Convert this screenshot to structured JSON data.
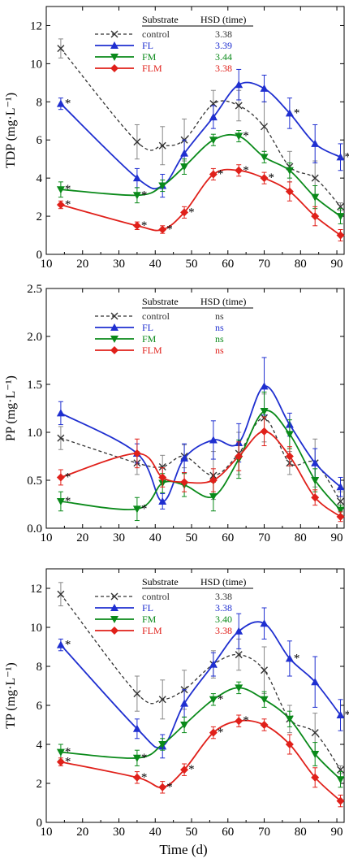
{
  "figure": {
    "xlabel": "Time (d)"
  },
  "legend": {
    "header_substrate": "Substrate",
    "header_hsd": "HSD (time)"
  },
  "colors": {
    "control": "#333333",
    "FL": "#1f2fd0",
    "FM": "#0a8a1a",
    "FLM": "#e0201a"
  },
  "chart_data": [
    {
      "type": "line",
      "ylabel": "TDP (mg·L⁻¹)",
      "ylim": [
        0,
        13
      ],
      "yticks": [
        0,
        2,
        4,
        6,
        8,
        10,
        12
      ],
      "xlim": [
        10,
        92
      ],
      "xticks": [
        10,
        20,
        30,
        40,
        50,
        60,
        70,
        80,
        90
      ],
      "legend_hsd": [
        "3.38",
        "3.39",
        "3.44",
        "3.38"
      ],
      "series": [
        {
          "name": "control",
          "x": [
            14,
            35,
            42,
            48,
            56,
            63,
            70,
            77,
            84,
            91
          ],
          "values": [
            10.8,
            5.9,
            5.7,
            6.0,
            7.9,
            7.8,
            6.7,
            4.6,
            4.0,
            2.5
          ],
          "errors": [
            0.5,
            0.9,
            1.0,
            1.1,
            0.7,
            0.8,
            1.3,
            0.8,
            0.9,
            0.2
          ]
        },
        {
          "name": "FL",
          "x": [
            14,
            35,
            42,
            48,
            56,
            63,
            70,
            77,
            84,
            91
          ],
          "values": [
            7.9,
            4.0,
            3.6,
            5.3,
            7.2,
            8.9,
            8.7,
            7.4,
            5.8,
            5.1
          ],
          "errors": [
            0.3,
            0.5,
            0.6,
            0.7,
            0.6,
            0.8,
            0.7,
            0.8,
            1.0,
            0.7
          ],
          "sig": [
            true,
            false,
            false,
            false,
            false,
            false,
            false,
            true,
            false,
            true
          ]
        },
        {
          "name": "FM",
          "x": [
            14,
            35,
            42,
            48,
            56,
            63,
            70,
            77,
            84,
            91
          ],
          "values": [
            3.4,
            3.1,
            3.6,
            4.6,
            6.0,
            6.2,
            5.1,
            4.4,
            3.0,
            2.0
          ],
          "errors": [
            0.4,
            0.4,
            0.3,
            0.4,
            0.3,
            0.3,
            0.3,
            0.4,
            0.6,
            0.4
          ],
          "sig": [
            true,
            true,
            false,
            false,
            false,
            true,
            false,
            false,
            false,
            false
          ]
        },
        {
          "name": "FLM",
          "x": [
            14,
            35,
            42,
            48,
            56,
            63,
            70,
            77,
            84,
            91
          ],
          "values": [
            2.6,
            1.5,
            1.3,
            2.2,
            4.2,
            4.4,
            4.0,
            3.3,
            2.0,
            1.0
          ],
          "errors": [
            0.2,
            0.2,
            0.2,
            0.3,
            0.3,
            0.3,
            0.3,
            0.5,
            0.5,
            0.3
          ],
          "sig": [
            true,
            true,
            true,
            true,
            true,
            true,
            true,
            false,
            false,
            false
          ]
        }
      ]
    },
    {
      "type": "line",
      "ylabel": "PP (mg·L⁻¹)",
      "ylim": [
        0,
        2.5
      ],
      "yticks": [
        0.0,
        0.5,
        1.0,
        1.5,
        2.0,
        2.5
      ],
      "xlim": [
        10,
        92
      ],
      "xticks": [
        10,
        20,
        30,
        40,
        50,
        60,
        70,
        80,
        90
      ],
      "legend_hsd": [
        "ns",
        "ns",
        "ns",
        "ns"
      ],
      "series": [
        {
          "name": "control",
          "x": [
            14,
            35,
            42,
            48,
            56,
            63,
            70,
            77,
            84,
            91
          ],
          "values": [
            0.94,
            0.68,
            0.64,
            0.75,
            0.55,
            0.78,
            1.15,
            0.68,
            0.68,
            0.28
          ],
          "errors": [
            0.12,
            0.12,
            0.12,
            0.12,
            0.25,
            0.22,
            0.25,
            0.12,
            0.25,
            0.1
          ]
        },
        {
          "name": "FL",
          "x": [
            14,
            35,
            42,
            48,
            56,
            63,
            70,
            77,
            84,
            91
          ],
          "values": [
            1.2,
            0.78,
            0.28,
            0.73,
            0.92,
            0.89,
            1.48,
            1.08,
            0.68,
            0.43
          ],
          "errors": [
            0.12,
            0.1,
            0.08,
            0.15,
            0.2,
            0.2,
            0.3,
            0.12,
            0.15,
            0.1
          ]
        },
        {
          "name": "FM",
          "x": [
            14,
            35,
            42,
            48,
            56,
            63,
            70,
            77,
            84,
            91
          ],
          "values": [
            0.28,
            0.2,
            0.47,
            0.45,
            0.33,
            0.72,
            1.22,
            0.98,
            0.5,
            0.19
          ],
          "errors": [
            0.1,
            0.12,
            0.1,
            0.12,
            0.15,
            0.2,
            0.2,
            0.15,
            0.12,
            0.05
          ],
          "sig": [
            true,
            true,
            false,
            false,
            false,
            false,
            false,
            false,
            false,
            false
          ]
        },
        {
          "name": "FLM",
          "x": [
            14,
            35,
            42,
            48,
            56,
            63,
            70,
            77,
            84,
            91
          ],
          "values": [
            0.53,
            0.78,
            0.53,
            0.48,
            0.5,
            0.75,
            1.01,
            0.75,
            0.32,
            0.12
          ],
          "errors": [
            0.08,
            0.15,
            0.1,
            0.1,
            0.12,
            0.15,
            0.15,
            0.1,
            0.08,
            0.05
          ],
          "sig": [
            true,
            false,
            false,
            false,
            false,
            false,
            false,
            false,
            false,
            false
          ]
        }
      ]
    },
    {
      "type": "line",
      "ylabel": "TP (mg·L⁻¹)",
      "ylim": [
        0,
        13
      ],
      "yticks": [
        0,
        2,
        4,
        6,
        8,
        10,
        12
      ],
      "xlim": [
        10,
        92
      ],
      "xticks": [
        10,
        20,
        30,
        40,
        50,
        60,
        70,
        80,
        90
      ],
      "legend_hsd": [
        "3.38",
        "3.38",
        "3.40",
        "3.38"
      ],
      "series": [
        {
          "name": "control",
          "x": [
            14,
            35,
            42,
            48,
            56,
            63,
            70,
            77,
            84,
            91
          ],
          "values": [
            11.7,
            6.6,
            6.3,
            6.8,
            8.1,
            8.6,
            7.8,
            5.3,
            4.6,
            2.7
          ],
          "errors": [
            0.6,
            0.9,
            1.0,
            1.0,
            0.7,
            0.8,
            1.2,
            0.7,
            1.0,
            0.2
          ]
        },
        {
          "name": "FL",
          "x": [
            14,
            35,
            42,
            48,
            56,
            63,
            70,
            77,
            84,
            91
          ],
          "values": [
            9.1,
            4.8,
            3.9,
            6.1,
            8.1,
            9.8,
            10.2,
            8.4,
            7.2,
            5.5
          ],
          "errors": [
            0.3,
            0.5,
            0.6,
            0.7,
            0.6,
            0.9,
            0.8,
            0.9,
            1.3,
            0.8
          ],
          "sig": [
            true,
            false,
            false,
            false,
            false,
            false,
            false,
            true,
            false,
            true
          ]
        },
        {
          "name": "FM",
          "x": [
            14,
            35,
            42,
            48,
            56,
            63,
            70,
            77,
            84,
            91
          ],
          "values": [
            3.6,
            3.3,
            4.0,
            5.0,
            6.3,
            6.9,
            6.3,
            5.3,
            3.5,
            2.2
          ],
          "errors": [
            0.4,
            0.4,
            0.3,
            0.4,
            0.3,
            0.3,
            0.4,
            0.4,
            0.6,
            0.4
          ],
          "sig": [
            true,
            true,
            false,
            false,
            true,
            false,
            false,
            false,
            false,
            false
          ]
        },
        {
          "name": "FLM",
          "x": [
            14,
            35,
            42,
            48,
            56,
            63,
            70,
            77,
            84,
            91
          ],
          "values": [
            3.1,
            2.3,
            1.8,
            2.7,
            4.6,
            5.2,
            5.0,
            4.0,
            2.3,
            1.1
          ],
          "errors": [
            0.2,
            0.3,
            0.3,
            0.3,
            0.3,
            0.3,
            0.3,
            0.5,
            0.5,
            0.3
          ],
          "sig": [
            true,
            true,
            true,
            true,
            true,
            true,
            false,
            false,
            false,
            false
          ]
        }
      ]
    }
  ]
}
